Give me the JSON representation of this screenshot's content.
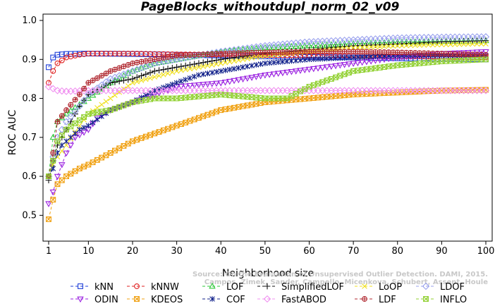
{
  "chart_data": {
    "type": "line",
    "title": "PageBlocks_withoutdupl_norm_02_v09",
    "xlabel": "Neighborhood size",
    "ylabel": "ROC AUC",
    "xlim": [
      1,
      100
    ],
    "ylim": [
      0.45,
      1.0
    ],
    "xticks": [
      "1",
      "10",
      "20",
      "30",
      "40",
      "50",
      "60",
      "70",
      "80",
      "90",
      "100"
    ],
    "yticks": [
      "0.5",
      "0.6",
      "0.7",
      "0.8",
      "0.9",
      "1.0"
    ],
    "grid": false,
    "legend_position": "bottom",
    "watermark": [
      "Source: On the Evaluation of Unsupervised Outlier Detection. DAMI, 2015.",
      "Campos, Zimek, Sander, Campello, Micenkova, Schubert, Assent, Houle"
    ],
    "series": [
      {
        "name": "kNN",
        "color": "#1f3fd8",
        "marker": "square",
        "points": [
          [
            1,
            0.88
          ],
          [
            2,
            0.905
          ],
          [
            3,
            0.912
          ],
          [
            5,
            0.914
          ],
          [
            10,
            0.915
          ],
          [
            20,
            0.914
          ],
          [
            30,
            0.912
          ],
          [
            40,
            0.91
          ],
          [
            50,
            0.908
          ],
          [
            60,
            0.906
          ],
          [
            70,
            0.905
          ],
          [
            80,
            0.903
          ],
          [
            90,
            0.902
          ],
          [
            100,
            0.9
          ]
        ]
      },
      {
        "name": "kNNW",
        "color": "#e02020",
        "marker": "circle",
        "points": [
          [
            1,
            0.84
          ],
          [
            2,
            0.87
          ],
          [
            3,
            0.89
          ],
          [
            5,
            0.905
          ],
          [
            8,
            0.912
          ],
          [
            10,
            0.915
          ],
          [
            20,
            0.915
          ],
          [
            30,
            0.913
          ],
          [
            40,
            0.912
          ],
          [
            50,
            0.911
          ],
          [
            60,
            0.91
          ],
          [
            70,
            0.909
          ],
          [
            80,
            0.908
          ],
          [
            90,
            0.907
          ],
          [
            100,
            0.905
          ]
        ]
      },
      {
        "name": "LOF",
        "color": "#2ec83a",
        "marker": "triangle-up",
        "points": [
          [
            1,
            0.6
          ],
          [
            2,
            0.7
          ],
          [
            3,
            0.74
          ],
          [
            5,
            0.76
          ],
          [
            10,
            0.8
          ],
          [
            15,
            0.84
          ],
          [
            20,
            0.87
          ],
          [
            25,
            0.89
          ],
          [
            30,
            0.9
          ],
          [
            40,
            0.92
          ],
          [
            50,
            0.93
          ],
          [
            60,
            0.935
          ],
          [
            70,
            0.94
          ],
          [
            80,
            0.944
          ],
          [
            90,
            0.946
          ],
          [
            100,
            0.948
          ]
        ]
      },
      {
        "name": "SimplifiedLOF",
        "color": "#111111",
        "marker": "plus",
        "points": [
          [
            1,
            0.59
          ],
          [
            2,
            0.64
          ],
          [
            3,
            0.68
          ],
          [
            5,
            0.72
          ],
          [
            8,
            0.78
          ],
          [
            10,
            0.81
          ],
          [
            15,
            0.84
          ],
          [
            20,
            0.85
          ],
          [
            25,
            0.87
          ],
          [
            30,
            0.88
          ],
          [
            35,
            0.89
          ],
          [
            40,
            0.9
          ],
          [
            50,
            0.915
          ],
          [
            60,
            0.925
          ],
          [
            70,
            0.935
          ],
          [
            80,
            0.94
          ],
          [
            90,
            0.945
          ],
          [
            100,
            0.948
          ]
        ]
      },
      {
        "name": "LoOP",
        "color": "#f0e020",
        "marker": "cross",
        "points": [
          [
            1,
            0.6
          ],
          [
            2,
            0.63
          ],
          [
            3,
            0.65
          ],
          [
            5,
            0.68
          ],
          [
            8,
            0.73
          ],
          [
            10,
            0.76
          ],
          [
            15,
            0.8
          ],
          [
            20,
            0.84
          ],
          [
            30,
            0.87
          ],
          [
            40,
            0.89
          ],
          [
            50,
            0.91
          ],
          [
            60,
            0.92
          ],
          [
            70,
            0.93
          ],
          [
            80,
            0.935
          ],
          [
            90,
            0.938
          ],
          [
            100,
            0.94
          ]
        ]
      },
      {
        "name": "LDOF",
        "color": "#9aa2ee",
        "marker": "diamond",
        "points": [
          [
            1,
            0.6
          ],
          [
            2,
            0.65
          ],
          [
            3,
            0.7
          ],
          [
            5,
            0.74
          ],
          [
            8,
            0.78
          ],
          [
            10,
            0.81
          ],
          [
            15,
            0.85
          ],
          [
            20,
            0.87
          ],
          [
            25,
            0.89
          ],
          [
            30,
            0.9
          ],
          [
            40,
            0.92
          ],
          [
            50,
            0.935
          ],
          [
            60,
            0.945
          ],
          [
            70,
            0.95
          ],
          [
            80,
            0.955
          ],
          [
            90,
            0.957
          ],
          [
            100,
            0.958
          ]
        ]
      },
      {
        "name": "ODIN",
        "color": "#9a20e0",
        "marker": "triangle-down",
        "points": [
          [
            1,
            0.53
          ],
          [
            2,
            0.56
          ],
          [
            3,
            0.6
          ],
          [
            4,
            0.63
          ],
          [
            5,
            0.66
          ],
          [
            7,
            0.7
          ],
          [
            10,
            0.72
          ],
          [
            12,
            0.75
          ],
          [
            15,
            0.77
          ],
          [
            20,
            0.79
          ],
          [
            25,
            0.81
          ],
          [
            30,
            0.83
          ],
          [
            40,
            0.84
          ],
          [
            50,
            0.86
          ],
          [
            60,
            0.875
          ],
          [
            70,
            0.89
          ],
          [
            80,
            0.905
          ],
          [
            90,
            0.915
          ],
          [
            100,
            0.92
          ]
        ]
      },
      {
        "name": "KDEOS",
        "color": "#f0a010",
        "marker": "square-x",
        "points": [
          [
            1,
            0.49
          ],
          [
            2,
            0.54
          ],
          [
            3,
            0.58
          ],
          [
            5,
            0.6
          ],
          [
            8,
            0.62
          ],
          [
            10,
            0.63
          ],
          [
            15,
            0.66
          ],
          [
            20,
            0.69
          ],
          [
            25,
            0.71
          ],
          [
            30,
            0.73
          ],
          [
            35,
            0.75
          ],
          [
            40,
            0.77
          ],
          [
            45,
            0.78
          ],
          [
            50,
            0.79
          ],
          [
            60,
            0.8
          ],
          [
            70,
            0.81
          ],
          [
            80,
            0.815
          ],
          [
            90,
            0.82
          ],
          [
            100,
            0.822
          ]
        ]
      },
      {
        "name": "COF",
        "color": "#10208a",
        "marker": "asterisk",
        "points": [
          [
            1,
            0.6
          ],
          [
            2,
            0.62
          ],
          [
            3,
            0.66
          ],
          [
            4,
            0.68
          ],
          [
            5,
            0.69
          ],
          [
            8,
            0.72
          ],
          [
            10,
            0.73
          ],
          [
            15,
            0.77
          ],
          [
            20,
            0.79
          ],
          [
            25,
            0.82
          ],
          [
            30,
            0.84
          ],
          [
            35,
            0.86
          ],
          [
            40,
            0.87
          ],
          [
            50,
            0.89
          ],
          [
            60,
            0.9
          ],
          [
            70,
            0.905
          ],
          [
            80,
            0.91
          ],
          [
            90,
            0.91
          ],
          [
            100,
            0.91
          ]
        ]
      },
      {
        "name": "FastABOD",
        "color": "#f090f0",
        "marker": "diamond",
        "points": [
          [
            1,
            0.83
          ],
          [
            2,
            0.825
          ],
          [
            3,
            0.82
          ],
          [
            5,
            0.818
          ],
          [
            10,
            0.82
          ],
          [
            20,
            0.82
          ],
          [
            30,
            0.82
          ],
          [
            40,
            0.82
          ],
          [
            50,
            0.82
          ],
          [
            60,
            0.82
          ],
          [
            70,
            0.82
          ],
          [
            80,
            0.82
          ],
          [
            90,
            0.82
          ],
          [
            100,
            0.82
          ]
        ]
      },
      {
        "name": "LDF",
        "color": "#b02830",
        "marker": "circle-plus",
        "points": [
          [
            1,
            0.6
          ],
          [
            2,
            0.66
          ],
          [
            3,
            0.74
          ],
          [
            5,
            0.77
          ],
          [
            8,
            0.81
          ],
          [
            10,
            0.84
          ],
          [
            15,
            0.87
          ],
          [
            20,
            0.89
          ],
          [
            25,
            0.9
          ],
          [
            30,
            0.91
          ],
          [
            40,
            0.915
          ],
          [
            50,
            0.918
          ],
          [
            60,
            0.92
          ],
          [
            70,
            0.92
          ],
          [
            80,
            0.918
          ],
          [
            90,
            0.915
          ],
          [
            100,
            0.912
          ]
        ]
      },
      {
        "name": "INFLO",
        "color": "#90d030",
        "marker": "square-x",
        "points": [
          [
            1,
            0.6
          ],
          [
            2,
            0.64
          ],
          [
            3,
            0.69
          ],
          [
            5,
            0.72
          ],
          [
            10,
            0.76
          ],
          [
            15,
            0.77
          ],
          [
            20,
            0.79
          ],
          [
            25,
            0.8
          ],
          [
            30,
            0.8
          ],
          [
            40,
            0.81
          ],
          [
            50,
            0.8
          ],
          [
            55,
            0.8
          ],
          [
            60,
            0.83
          ],
          [
            65,
            0.85
          ],
          [
            70,
            0.87
          ],
          [
            80,
            0.885
          ],
          [
            90,
            0.895
          ],
          [
            100,
            0.9
          ]
        ]
      }
    ]
  }
}
